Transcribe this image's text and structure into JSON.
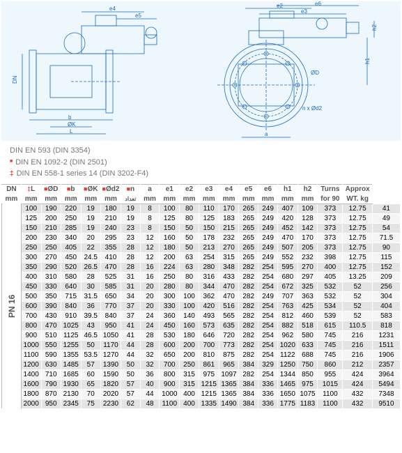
{
  "diagram": {
    "bg_color": "#eef7fe",
    "stroke_color": "#1a6bb5",
    "red_color": "#e53935",
    "labels": {
      "e4": "e4",
      "e5": "e5",
      "e2": "e2",
      "e6": "e6",
      "e3": "e3",
      "DN": "DN",
      "OD": "ØD",
      "h2": "h2",
      "h1": "h1",
      "nxOd2": "n x Ød2",
      "a": "a",
      "b": "b",
      "L": "L",
      "OK": "ØK"
    }
  },
  "notes": {
    "n1": "DIN EN 593 (DIN 3354)",
    "n2": "DIN EN 1092-2 (DIN 2501)",
    "n3": "DIN EN 558-1 series 14 (DIN 3202-F4)"
  },
  "table": {
    "side_label": "PN 16",
    "header1": [
      "DN",
      "L",
      "ØD",
      "b",
      "ØK",
      "Ød2",
      "n",
      "a",
      "e1",
      "e2",
      "e3",
      "e4",
      "e5",
      "e6",
      "h1",
      "h2",
      "Turns",
      "Approx"
    ],
    "header1_marks": [
      "",
      "‡",
      "■",
      "■",
      "■",
      "■",
      "■",
      "",
      "",
      "",
      "",
      "",
      "",
      "",
      "",
      "",
      "",
      ""
    ],
    "header2": [
      "mm",
      "mm",
      "mm",
      "mm",
      "mm",
      "mm",
      "تعداد",
      "mm",
      "mm",
      "mm",
      "mm",
      "mm",
      "mm",
      "mm",
      "mm",
      "mm",
      "for 90",
      "WT. kg"
    ],
    "rows": [
      [
        100,
        190,
        220,
        19,
        180,
        19,
        8,
        100,
        80,
        110,
        170,
        265,
        249,
        407,
        109,
        373,
        "12.75",
        41
      ],
      [
        125,
        200,
        250,
        19,
        210,
        19,
        8,
        125,
        80,
        125,
        183,
        265,
        249,
        420,
        128,
        373,
        "12.75",
        49
      ],
      [
        150,
        210,
        285,
        19,
        240,
        23,
        8,
        150,
        50,
        150,
        215,
        265,
        249,
        452,
        142,
        373,
        "12.75",
        54
      ],
      [
        200,
        230,
        340,
        20,
        295,
        23,
        12,
        160,
        50,
        178,
        232,
        265,
        249,
        470,
        170,
        373,
        "12.75",
        71.5
      ],
      [
        250,
        250,
        405,
        22,
        355,
        28,
        12,
        180,
        50,
        213,
        270,
        265,
        249,
        507,
        205,
        373,
        "12.75",
        90
      ],
      [
        300,
        270,
        450,
        24.5,
        410,
        28,
        12,
        200,
        63,
        254,
        315,
        265,
        249,
        552,
        232,
        398,
        "12.75",
        115
      ],
      [
        350,
        290,
        520,
        26.5,
        470,
        28,
        16,
        224,
        63,
        280,
        348,
        282,
        254,
        595,
        270,
        400,
        "12.75",
        152
      ],
      [
        400,
        310,
        580,
        28,
        525,
        31,
        16,
        250,
        80,
        316,
        433,
        282,
        254,
        680,
        297,
        405,
        "13.25",
        209
      ],
      [
        450,
        330,
        640,
        30,
        585,
        31,
        20,
        280,
        80,
        344,
        470,
        282,
        254,
        672,
        325,
        532,
        52,
        256
      ],
      [
        500,
        350,
        715,
        31.5,
        650,
        34,
        20,
        300,
        100,
        362,
        470,
        282,
        249,
        707,
        363,
        532,
        52,
        304
      ],
      [
        600,
        390,
        840,
        36,
        770,
        37,
        20,
        330,
        100,
        420,
        516,
        282,
        254,
        763,
        425,
        534,
        52,
        404
      ],
      [
        700,
        430,
        910,
        39.5,
        840,
        37,
        24,
        360,
        140,
        493,
        565,
        282,
        254,
        812,
        460,
        539,
        52,
        583
      ],
      [
        800,
        470,
        1025,
        43,
        950,
        41,
        24,
        450,
        160,
        573,
        635,
        282,
        254,
        882,
        518,
        615,
        110.5,
        818
      ],
      [
        900,
        510,
        1125,
        46.5,
        1050,
        41,
        28,
        530,
        180,
        646,
        720,
        282,
        254,
        962,
        580,
        745,
        216,
        1231
      ],
      [
        1000,
        550,
        1255,
        50,
        1170,
        44,
        28,
        600,
        200,
        700,
        773,
        282,
        254,
        1020,
        633,
        745,
        216,
        1511
      ],
      [
        1100,
        590,
        1355,
        53.5,
        1270,
        44,
        32,
        650,
        200,
        810,
        875,
        282,
        254,
        1122,
        688,
        745,
        216,
        1906
      ],
      [
        1200,
        630,
        1485,
        57,
        1390,
        50,
        32,
        700,
        250,
        861,
        965,
        384,
        329,
        1250,
        750,
        860,
        212,
        2357
      ],
      [
        1400,
        710,
        1685,
        60,
        1590,
        50,
        36,
        800,
        315,
        975,
        1097,
        282,
        254,
        1344,
        850,
        955,
        424,
        3964
      ],
      [
        1600,
        790,
        1930,
        65,
        1820,
        57,
        40,
        900,
        315,
        1215,
        1365,
        384,
        336,
        1465,
        975,
        1015,
        424,
        5494
      ],
      [
        1800,
        870,
        2130,
        70,
        2020,
        57,
        44,
        1000,
        400,
        1215,
        1365,
        384,
        336,
        1650,
        1075,
        1100,
        432,
        7348
      ],
      [
        2000,
        950,
        2345,
        75,
        2230,
        62,
        48,
        1100,
        400,
        1335,
        1490,
        384,
        336,
        1775,
        1183,
        1100,
        432,
        9510
      ]
    ]
  }
}
